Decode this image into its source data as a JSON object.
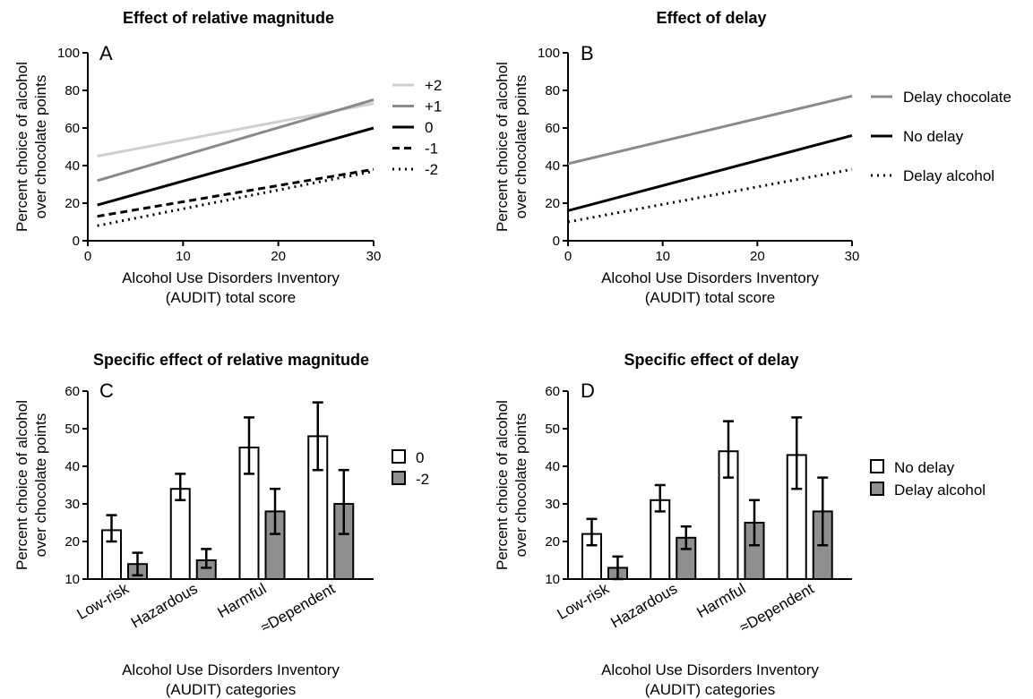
{
  "chart_data": [
    {
      "type": "line",
      "panel": "A",
      "title": "Effect of relative magnitude",
      "xlabel": [
        "Alcohol Use Disorders Inventory",
        "(AUDIT) total score"
      ],
      "ylabel": [
        "Percent choice of alcohol",
        "over chocolate points"
      ],
      "xlim": [
        0,
        30
      ],
      "ylim": [
        0,
        100
      ],
      "xticks": [
        0,
        10,
        20,
        30
      ],
      "yticks": [
        0,
        20,
        40,
        60,
        80,
        100
      ],
      "grid": false,
      "legend_position": "right",
      "series": [
        {
          "name": "+2",
          "color": "#cfcfcf",
          "dash": "solid",
          "x": [
            1,
            30
          ],
          "y": [
            45,
            73
          ]
        },
        {
          "name": "+1",
          "color": "#8a8a8a",
          "dash": "solid",
          "x": [
            1,
            30
          ],
          "y": [
            32,
            75
          ]
        },
        {
          "name": "0",
          "color": "#000000",
          "dash": "solid",
          "x": [
            1,
            30
          ],
          "y": [
            19,
            60
          ]
        },
        {
          "name": "-1",
          "color": "#000000",
          "dash": "dashed",
          "x": [
            1,
            30
          ],
          "y": [
            13,
            38
          ]
        },
        {
          "name": "-2",
          "color": "#000000",
          "dash": "dotted",
          "x": [
            1,
            30
          ],
          "y": [
            8,
            37
          ]
        }
      ]
    },
    {
      "type": "line",
      "panel": "B",
      "title": "Effect of delay",
      "xlabel": [
        "Alcohol Use Disorders Inventory",
        "(AUDIT) total score"
      ],
      "ylabel": [
        "Percent choice of alcohol",
        "over chocolate points"
      ],
      "xlim": [
        0,
        30
      ],
      "ylim": [
        0,
        100
      ],
      "xticks": [
        0,
        10,
        20,
        30
      ],
      "yticks": [
        0,
        20,
        40,
        60,
        80,
        100
      ],
      "grid": false,
      "legend_position": "right",
      "series": [
        {
          "name": "Delay chocolate",
          "color": "#8a8a8a",
          "dash": "solid",
          "x": [
            0,
            30
          ],
          "y": [
            41,
            77
          ]
        },
        {
          "name": "No delay",
          "color": "#000000",
          "dash": "solid",
          "x": [
            0,
            30
          ],
          "y": [
            16,
            56
          ]
        },
        {
          "name": "Delay alcohol",
          "color": "#000000",
          "dash": "dotted",
          "x": [
            0,
            30
          ],
          "y": [
            10,
            38
          ]
        }
      ]
    },
    {
      "type": "bar",
      "panel": "C",
      "title": "Specific effect of relative magnitude",
      "xlabel": [
        "Alcohol Use Disorders Inventory",
        "(AUDIT) categories"
      ],
      "ylabel": [
        "Percent choice of alcohol",
        "over chocolate points"
      ],
      "ylim": [
        10,
        60
      ],
      "yticks": [
        10,
        20,
        30,
        40,
        50,
        60
      ],
      "categories": [
        "Low-risk",
        "Hazardous",
        "Harmful",
        "≈Dependent"
      ],
      "legend_position": "right",
      "series": [
        {
          "name": "0",
          "fill": "#ffffff",
          "values": [
            23,
            34,
            45,
            48
          ],
          "err_low": [
            20,
            31,
            38,
            39
          ],
          "err_high": [
            27,
            38,
            53,
            57
          ]
        },
        {
          "name": "-2",
          "fill": "#8f8f8f",
          "values": [
            14,
            15,
            28,
            30
          ],
          "err_low": [
            11,
            13,
            22,
            22
          ],
          "err_high": [
            17,
            18,
            34,
            39
          ]
        }
      ]
    },
    {
      "type": "bar",
      "panel": "D",
      "title": "Specific effect of delay",
      "xlabel": [
        "Alcohol Use Disorders Inventory",
        "(AUDIT) categories"
      ],
      "ylabel": [
        "Percent choice of alcohol",
        "over chocolate points"
      ],
      "ylim": [
        10,
        60
      ],
      "yticks": [
        10,
        20,
        30,
        40,
        50,
        60
      ],
      "categories": [
        "Low-risk",
        "Hazardous",
        "Harmful",
        "≈Dependent"
      ],
      "legend_position": "right",
      "series": [
        {
          "name": "No delay",
          "fill": "#ffffff",
          "values": [
            22,
            31,
            44,
            43
          ],
          "err_low": [
            19,
            28,
            37,
            34
          ],
          "err_high": [
            26,
            35,
            52,
            53
          ]
        },
        {
          "name": "Delay alcohol",
          "fill": "#8f8f8f",
          "values": [
            13,
            21,
            25,
            28
          ],
          "err_low": [
            10,
            18,
            19,
            19
          ],
          "err_high": [
            16,
            24,
            31,
            37
          ]
        }
      ]
    }
  ]
}
